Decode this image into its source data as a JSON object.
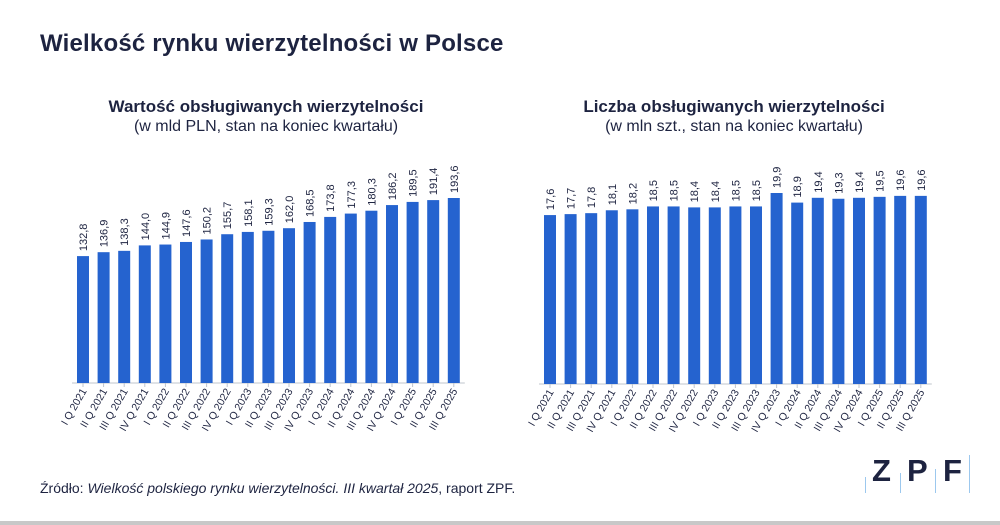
{
  "title": "Wielkość rynku wierzytelności w Polsce",
  "source": {
    "prefix": "Źródło: ",
    "italic": "Wielkość polskiego rynku wierzytelności. III kwartał 2025",
    "suffix": ", raport ZPF."
  },
  "logo": {
    "letters": [
      "Z",
      "P",
      "F"
    ]
  },
  "colors": {
    "bar": "#2563cf",
    "text": "#1d2340"
  },
  "chart_data": [
    {
      "type": "bar",
      "title": "Wartość obsługiwanych wierzytelności",
      "subtitle": "(w mld PLN, stan na koniec kwartału)",
      "categories": [
        "I Q 2021",
        "II Q 2021",
        "III Q 2021",
        "IV Q 2021",
        "I Q 2022",
        "II Q 2022",
        "III Q 2022",
        "IV Q 2022",
        "I Q 2023",
        "II Q 2023",
        "III Q 2023",
        "IV Q 2023",
        "I Q 2024",
        "II Q 2024",
        "III Q 2024",
        "IV Q 2024",
        "I Q 2025",
        "II Q 2025",
        "III Q 2025"
      ],
      "values": [
        132.8,
        136.9,
        138.3,
        144.0,
        144.9,
        147.6,
        150.2,
        155.7,
        158.1,
        159.3,
        162.0,
        168.5,
        173.8,
        177.3,
        180.3,
        186.2,
        189.5,
        191.4,
        193.6
      ],
      "labels": [
        "132,8",
        "136,9",
        "138,3",
        "144,0",
        "144,9",
        "147,6",
        "150,2",
        "155,7",
        "158,1",
        "159,3",
        "162,0",
        "168,5",
        "173,8",
        "177,3",
        "180,3",
        "186,2",
        "189,5",
        "191,4",
        "193,6"
      ],
      "ylim": [
        0,
        193.6
      ],
      "grid": false
    },
    {
      "type": "bar",
      "title": "Liczba obsługiwanych wierzytelności",
      "subtitle": "(w mln szt., stan na koniec   kwartału)",
      "categories": [
        "I Q 2021",
        "II Q 2021",
        "III Q 2021",
        "IV Q 2021",
        "I Q 2022",
        "II Q 2022",
        "III Q 2022",
        "IV Q 2022",
        "I Q 2023",
        "II Q 2023",
        "III Q 2023",
        "IV Q 2023",
        "I Q 2024",
        "II Q 2024",
        "III Q 2024",
        "IV Q 2024",
        "I Q 2025",
        "II Q 2025",
        "III Q 2025"
      ],
      "values": [
        17.6,
        17.7,
        17.8,
        18.1,
        18.2,
        18.5,
        18.5,
        18.4,
        18.4,
        18.5,
        18.5,
        19.9,
        18.9,
        19.4,
        19.3,
        19.4,
        19.5,
        19.6,
        19.6
      ],
      "labels": [
        "17,6",
        "17,7",
        "17,8",
        "18,1",
        "18,2",
        "18,5",
        "18,5",
        "18,4",
        "18,4",
        "18,5",
        "18,5",
        "19,9",
        "18,9",
        "19,4",
        "19,3",
        "19,4",
        "19,5",
        "19,6",
        "19,6"
      ],
      "ylim": [
        0,
        19.9
      ],
      "grid": false
    }
  ]
}
